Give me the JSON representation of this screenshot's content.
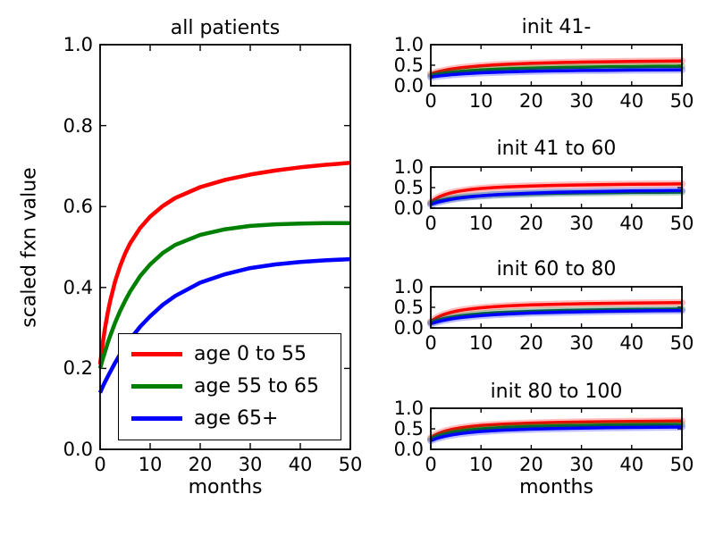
{
  "colors": {
    "red": "#ff0000",
    "green": "#008000",
    "blue": "#0000ff",
    "axis": "#000000",
    "background": "#ffffff"
  },
  "legend": {
    "entries": [
      {
        "label": "age 0 to 55",
        "color": "#ff0000"
      },
      {
        "label": "age 55 to 65",
        "color": "#008000"
      },
      {
        "label": "age 65+",
        "color": "#0000ff"
      }
    ]
  },
  "chart_data": [
    {
      "id": "all-patients",
      "type": "line",
      "title": "all patients",
      "xlabel": "months",
      "ylabel": "scaled fxn value",
      "xlim": [
        0,
        50
      ],
      "ylim": [
        0.0,
        1.0
      ],
      "xticks": [
        "0",
        "10",
        "20",
        "30",
        "40",
        "50"
      ],
      "yticks": [
        "0.0",
        "0.2",
        "0.4",
        "0.6",
        "0.8",
        "1.0"
      ],
      "grid": false,
      "legend_position": "lower center inside",
      "x": [
        0,
        0.5,
        1,
        1.5,
        2,
        3,
        4,
        5,
        6,
        8,
        10,
        12.5,
        15,
        20,
        25,
        30,
        35,
        40,
        45,
        50
      ],
      "series": [
        {
          "name": "age 0 to 55",
          "color": "#ff0000",
          "y": [
            0.21,
            0.26,
            0.301,
            0.336,
            0.366,
            0.415,
            0.453,
            0.484,
            0.509,
            0.547,
            0.575,
            0.601,
            0.621,
            0.648,
            0.666,
            0.679,
            0.689,
            0.697,
            0.703,
            0.708
          ]
        },
        {
          "name": "age 55 to 65",
          "color": "#008000",
          "y": [
            0.2,
            0.222,
            0.242,
            0.262,
            0.28,
            0.313,
            0.342,
            0.367,
            0.39,
            0.428,
            0.457,
            0.485,
            0.505,
            0.53,
            0.544,
            0.552,
            0.556,
            0.558,
            0.559,
            0.559
          ]
        },
        {
          "name": "age 65+",
          "color": "#0000ff",
          "y": [
            0.14,
            0.154,
            0.167,
            0.179,
            0.191,
            0.214,
            0.235,
            0.254,
            0.272,
            0.303,
            0.329,
            0.357,
            0.379,
            0.412,
            0.433,
            0.448,
            0.457,
            0.463,
            0.467,
            0.47
          ]
        }
      ]
    },
    {
      "id": "init-41-minus",
      "type": "line",
      "title": "init 41-",
      "xlabel": "",
      "ylabel": "",
      "xlim": [
        0,
        50
      ],
      "ylim": [
        0.0,
        1.0
      ],
      "xticks": [
        "0",
        "10",
        "20",
        "30",
        "40",
        "50"
      ],
      "yticks": [
        "0.0",
        "0.5",
        "1.0"
      ],
      "grid": false,
      "x": [
        0,
        0.5,
        1,
        1.5,
        2,
        3,
        4,
        5,
        6,
        8,
        10,
        12.5,
        15,
        20,
        25,
        30,
        35,
        40,
        45,
        50
      ],
      "series": [
        {
          "name": "age 0 to 55",
          "color": "#ff0000",
          "y": [
            0.29,
            0.309,
            0.327,
            0.343,
            0.357,
            0.383,
            0.404,
            0.422,
            0.438,
            0.464,
            0.485,
            0.505,
            0.521,
            0.545,
            0.562,
            0.575,
            0.584,
            0.592,
            0.598,
            0.604
          ]
        },
        {
          "name": "age 55 to 65",
          "color": "#008000",
          "y": [
            0.25,
            0.263,
            0.275,
            0.285,
            0.295,
            0.312,
            0.327,
            0.34,
            0.351,
            0.37,
            0.385,
            0.4,
            0.412,
            0.43,
            0.443,
            0.452,
            0.46,
            0.466,
            0.471,
            0.475
          ]
        },
        {
          "name": "age 65+",
          "color": "#0000ff",
          "y": [
            0.21,
            0.22,
            0.228,
            0.236,
            0.244,
            0.257,
            0.269,
            0.279,
            0.288,
            0.303,
            0.315,
            0.327,
            0.337,
            0.352,
            0.363,
            0.371,
            0.377,
            0.383,
            0.387,
            0.39
          ]
        }
      ]
    },
    {
      "id": "init-41-to-60",
      "type": "line",
      "title": "init 41 to 60",
      "xlabel": "",
      "ylabel": "",
      "xlim": [
        0,
        50
      ],
      "ylim": [
        0.0,
        1.0
      ],
      "xticks": [
        "0",
        "10",
        "20",
        "30",
        "40",
        "50"
      ],
      "yticks": [
        "0.0",
        "0.5",
        "1.0"
      ],
      "grid": false,
      "x": [
        0,
        0.5,
        1,
        1.5,
        2,
        3,
        4,
        5,
        6,
        8,
        10,
        12.5,
        15,
        20,
        25,
        30,
        35,
        40,
        45,
        50
      ],
      "series": [
        {
          "name": "age 0 to 55",
          "color": "#ff0000",
          "y": [
            0.14,
            0.189,
            0.229,
            0.263,
            0.291,
            0.336,
            0.371,
            0.398,
            0.42,
            0.454,
            0.478,
            0.5,
            0.517,
            0.54,
            0.555,
            0.566,
            0.574,
            0.58,
            0.585,
            0.589
          ]
        },
        {
          "name": "age 55 to 65",
          "color": "#008000",
          "y": [
            0.12,
            0.141,
            0.159,
            0.175,
            0.189,
            0.213,
            0.233,
            0.249,
            0.263,
            0.285,
            0.302,
            0.319,
            0.331,
            0.35,
            0.362,
            0.371,
            0.378,
            0.384,
            0.388,
            0.392
          ]
        },
        {
          "name": "age 65+",
          "color": "#0000ff",
          "y": [
            0.09,
            0.111,
            0.13,
            0.147,
            0.163,
            0.19,
            0.213,
            0.233,
            0.25,
            0.278,
            0.301,
            0.323,
            0.34,
            0.366,
            0.384,
            0.398,
            0.408,
            0.417,
            0.423,
            0.429
          ]
        }
      ]
    },
    {
      "id": "init-60-to-80",
      "type": "line",
      "title": "init 60 to 80",
      "xlabel": "",
      "ylabel": "",
      "xlim": [
        0,
        50
      ],
      "ylim": [
        0.0,
        1.0
      ],
      "xticks": [
        "0",
        "10",
        "20",
        "30",
        "40",
        "50"
      ],
      "yticks": [
        "0.0",
        "0.5",
        "1.0"
      ],
      "grid": false,
      "x": [
        0,
        0.5,
        1,
        1.5,
        2,
        3,
        4,
        5,
        6,
        8,
        10,
        12.5,
        15,
        20,
        25,
        30,
        35,
        40,
        45,
        50
      ],
      "series": [
        {
          "name": "age 0 to 55",
          "color": "#ff0000",
          "y": [
            0.15,
            0.196,
            0.235,
            0.268,
            0.296,
            0.341,
            0.377,
            0.405,
            0.428,
            0.464,
            0.49,
            0.514,
            0.533,
            0.558,
            0.575,
            0.587,
            0.596,
            0.603,
            0.609,
            0.614
          ]
        },
        {
          "name": "age 55 to 65",
          "color": "#008000",
          "y": [
            0.13,
            0.152,
            0.172,
            0.19,
            0.206,
            0.234,
            0.257,
            0.276,
            0.293,
            0.32,
            0.341,
            0.362,
            0.378,
            0.401,
            0.418,
            0.43,
            0.439,
            0.447,
            0.453,
            0.458
          ]
        },
        {
          "name": "age 65+",
          "color": "#0000ff",
          "y": [
            0.1,
            0.12,
            0.138,
            0.154,
            0.169,
            0.195,
            0.217,
            0.236,
            0.252,
            0.279,
            0.3,
            0.321,
            0.338,
            0.362,
            0.379,
            0.392,
            0.402,
            0.41,
            0.417,
            0.422
          ]
        }
      ]
    },
    {
      "id": "init-80-to-100",
      "type": "line",
      "title": "init 80 to 100",
      "xlabel": "months",
      "ylabel": "",
      "xlim": [
        0,
        50
      ],
      "ylim": [
        0.0,
        1.0
      ],
      "xticks": [
        "0",
        "10",
        "20",
        "30",
        "40",
        "50"
      ],
      "yticks": [
        "0.0",
        "0.5",
        "1.0"
      ],
      "grid": false,
      "x": [
        0,
        0.5,
        1,
        1.5,
        2,
        3,
        4,
        5,
        6,
        8,
        10,
        12.5,
        15,
        20,
        25,
        30,
        35,
        40,
        45,
        50
      ],
      "series": [
        {
          "name": "age 0 to 55",
          "color": "#ff0000",
          "y": [
            0.28,
            0.321,
            0.355,
            0.384,
            0.409,
            0.449,
            0.48,
            0.505,
            0.526,
            0.557,
            0.58,
            0.601,
            0.618,
            0.64,
            0.655,
            0.666,
            0.674,
            0.68,
            0.685,
            0.689
          ]
        },
        {
          "name": "age 55 to 65",
          "color": "#008000",
          "y": [
            0.25,
            0.281,
            0.307,
            0.33,
            0.35,
            0.383,
            0.41,
            0.432,
            0.45,
            0.479,
            0.5,
            0.52,
            0.536,
            0.558,
            0.573,
            0.583,
            0.592,
            0.598,
            0.603,
            0.607
          ]
        },
        {
          "name": "age 65+",
          "color": "#0000ff",
          "y": [
            0.21,
            0.235,
            0.258,
            0.277,
            0.294,
            0.324,
            0.348,
            0.368,
            0.385,
            0.413,
            0.434,
            0.454,
            0.469,
            0.492,
            0.507,
            0.518,
            0.527,
            0.533,
            0.539,
            0.543
          ]
        }
      ]
    }
  ]
}
